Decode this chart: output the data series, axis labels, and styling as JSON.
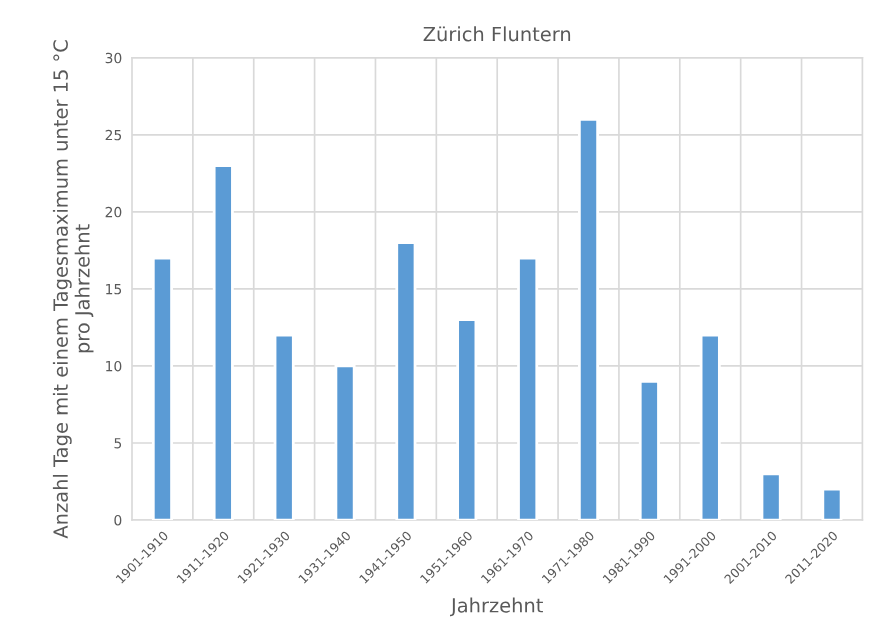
{
  "chart_data": {
    "type": "bar",
    "title": "Zürich Fluntern",
    "xlabel": "Jahrzehnt",
    "ylabel": "Anzahl Tage mit einem Tagesmaximum unter 15 °C\npro Jahrzehnt",
    "categories": [
      "1901-1910",
      "1911-1920",
      "1921-1930",
      "1931-1940",
      "1941-1950",
      "1951-1960",
      "1961-1970",
      "1971-1980",
      "1981-1990",
      "1991-2000",
      "2001-2010",
      "2011-2020"
    ],
    "values": [
      17,
      23,
      12,
      10,
      18,
      13,
      17,
      26,
      9,
      12,
      3,
      2
    ],
    "color": "#5b9bd5",
    "ylim": [
      0,
      30
    ],
    "yticks": [
      0,
      5,
      10,
      15,
      20,
      25,
      30
    ],
    "grid": true
  }
}
